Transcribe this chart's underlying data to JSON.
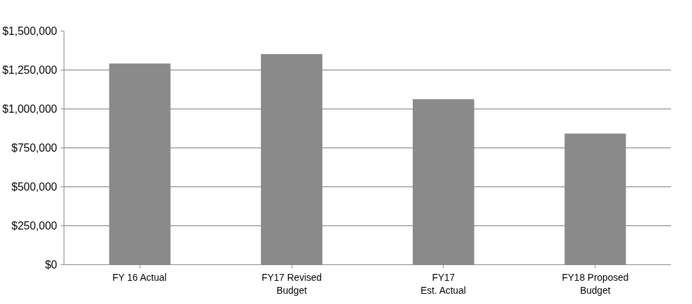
{
  "chart_data": {
    "type": "bar",
    "categories": [
      "FY 16 Actual",
      "FY17 Revised\nBudget",
      "FY17\nEst. Actual",
      "FY18 Proposed\nBudget"
    ],
    "values": [
      1290000,
      1350000,
      1060000,
      840000
    ],
    "color": "#8a8a8a",
    "ylim": [
      0,
      1500000
    ],
    "yticks": [
      {
        "value": 0,
        "label": "$0"
      },
      {
        "value": 250000,
        "label": "$250,000"
      },
      {
        "value": 500000,
        "label": "$500,000"
      },
      {
        "value": 750000,
        "label": "$750,000"
      },
      {
        "value": 1000000,
        "label": "$1,000,000"
      },
      {
        "value": 1250000,
        "label": "$1,250,000"
      },
      {
        "value": 1500000,
        "label": "$1,500,000"
      }
    ],
    "grid": "y"
  }
}
